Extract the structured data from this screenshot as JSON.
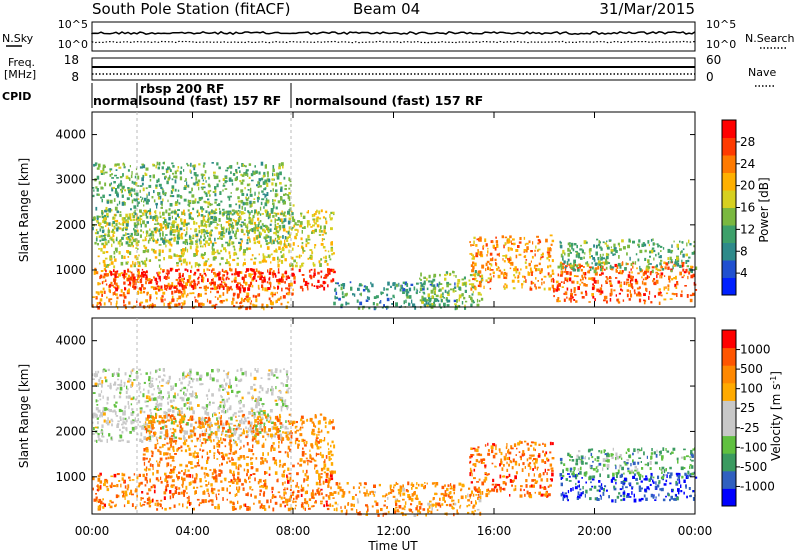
{
  "header": {
    "station": "South Pole Station (fitACF)",
    "beam": "Beam 04",
    "date": "31/Mar/2015"
  },
  "noise_panel": {
    "left_label": "N.Sky",
    "left_ticks": [
      "10^5",
      "10^0"
    ],
    "right_ticks": [
      "10^5",
      "10^0"
    ],
    "right_label": "N.Search"
  },
  "freq_panel": {
    "left_label_1": "Freq.",
    "left_label_2": "[MHz]",
    "left_ticks": [
      "18",
      "8"
    ],
    "right_ticks": [
      "60",
      "0"
    ],
    "right_label": "Nave"
  },
  "cpid": {
    "label": "CPID",
    "segments": [
      {
        "name": "normalsound (fast) 157 RF",
        "start_hour": 0
      },
      {
        "name": "rbsp 200 RF",
        "start_hour": 1.8
      },
      {
        "name": "normalsound (fast) 157 RF",
        "start_hour": 8.2
      }
    ]
  },
  "x_axis": {
    "label": "Time UT",
    "ticks": [
      "00:00",
      "04:00",
      "08:00",
      "12:00",
      "16:00",
      "20:00",
      "00:00"
    ]
  },
  "chart_data": [
    {
      "type": "heatmap",
      "title": "",
      "xlabel": "Time UT",
      "ylabel": "Slant Range [km]",
      "xlim": [
        0,
        24
      ],
      "ylim": [
        180,
        4500
      ],
      "y_ticks": [
        "1000",
        "2000",
        "3000",
        "4000"
      ],
      "colorbar": {
        "label": "Power [dB]",
        "range": [
          0,
          30
        ],
        "ticks": [
          "28",
          "24",
          "20",
          "16",
          "12",
          "8",
          "4"
        ],
        "colors": [
          "#0020ff",
          "#2050d0",
          "#2e8a8a",
          "#3da06a",
          "#7ab840",
          "#d6d020",
          "#ffb000",
          "#ff7a00",
          "#ff3a00",
          "#ff0000"
        ]
      },
      "regions": [
        {
          "t0": 0.0,
          "t1": 8.0,
          "r0": 180,
          "r1": 1050,
          "level": 0.75
        },
        {
          "t0": 0.4,
          "t1": 9.6,
          "r0": 600,
          "r1": 1050,
          "level": 0.92
        },
        {
          "t0": 0.2,
          "t1": 9.6,
          "r0": 1100,
          "r1": 2350,
          "level": 0.55
        },
        {
          "t0": 0.0,
          "t1": 8.0,
          "r0": 1600,
          "r1": 3400,
          "level": 0.4
        },
        {
          "t0": 9.6,
          "t1": 14.5,
          "r0": 180,
          "r1": 750,
          "level": 0.3
        },
        {
          "t0": 13.0,
          "t1": 15.5,
          "r0": 180,
          "r1": 1000,
          "level": 0.45
        },
        {
          "t0": 15.0,
          "t1": 18.3,
          "r0": 600,
          "r1": 1800,
          "level": 0.7
        },
        {
          "t0": 18.3,
          "t1": 24.0,
          "r0": 300,
          "r1": 1200,
          "level": 0.8
        },
        {
          "t0": 18.5,
          "t1": 24.0,
          "r0": 1000,
          "r1": 1700,
          "level": 0.4
        }
      ]
    },
    {
      "type": "heatmap",
      "title": "",
      "xlabel": "Time UT",
      "ylabel": "Slant Range [km]",
      "xlim": [
        0,
        24
      ],
      "ylim": [
        180,
        4500
      ],
      "y_ticks": [
        "1000",
        "2000",
        "3000",
        "4000"
      ],
      "colorbar": {
        "label": "Velocity [m s^-1]",
        "range": [
          -1200,
          1200
        ],
        "ticks": [
          "1000",
          "500",
          "100",
          "25",
          "-25",
          "-100",
          "-500",
          "-1000"
        ],
        "colors": [
          "#0000ff",
          "#3060c0",
          "#3a9a60",
          "#60c040",
          "#c8c8c8",
          "#c8c8c8",
          "#ffaa00",
          "#ff8800",
          "#ff5500",
          "#ff0000"
        ]
      },
      "regions": [
        {
          "t0": 0.0,
          "t1": 9.6,
          "r0": 300,
          "r1": 1100,
          "level": 0.78
        },
        {
          "t0": 0.0,
          "t1": 7.8,
          "r0": 1800,
          "r1": 3400,
          "level": 0.48
        },
        {
          "t0": 2.0,
          "t1": 9.6,
          "r0": 1100,
          "r1": 2400,
          "level": 0.75
        },
        {
          "t0": 9.6,
          "t1": 15.5,
          "r0": 180,
          "r1": 900,
          "level": 0.72
        },
        {
          "t0": 15.0,
          "t1": 18.3,
          "r0": 600,
          "r1": 1800,
          "level": 0.8
        },
        {
          "t0": 18.6,
          "t1": 24.0,
          "r0": 500,
          "r1": 1100,
          "level": 0.12
        },
        {
          "t0": 18.6,
          "t1": 24.0,
          "r0": 1000,
          "r1": 1650,
          "level": 0.3
        }
      ]
    }
  ]
}
